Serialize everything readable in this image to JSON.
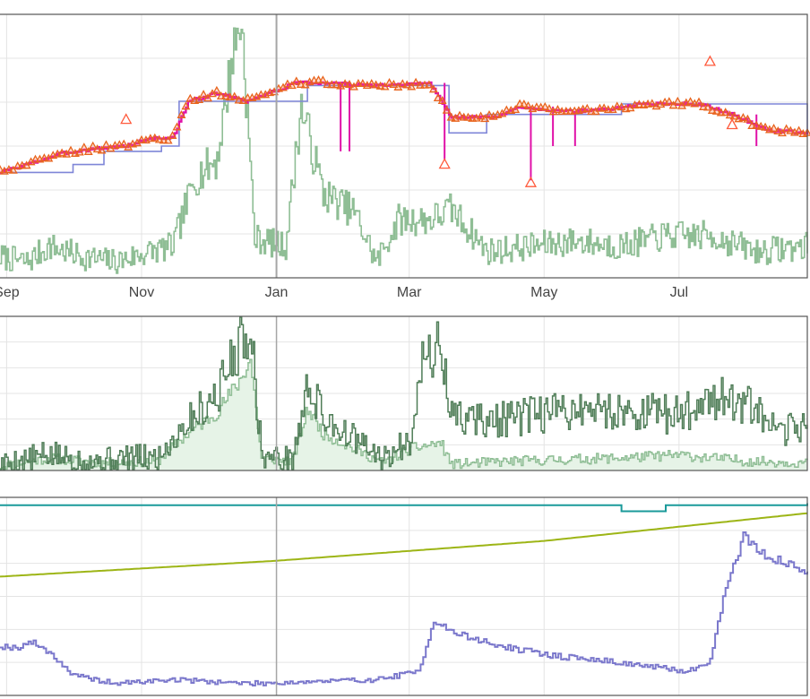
{
  "colors": {
    "price": "#e8641e",
    "price_marker": "#ff5a3c",
    "trade": "#e011a8",
    "fair": "#7f86d8",
    "volume": "#8fbe95",
    "volume_dark": "#4f7d57",
    "volume_fill": "#e6f3e7",
    "teal": "#1a9a9a",
    "olive": "#9db516",
    "blue": "#7b78cc",
    "grid": "#e4e4e4",
    "cursor": "#a6a6a6",
    "frame": "#555555"
  },
  "chart_data": [
    {
      "type": "line",
      "x_ticks": [
        {
          "label": "Sep",
          "date": "2023-09-01"
        },
        {
          "label": "Nov",
          "date": "2023-11-01"
        },
        {
          "label": "Jan",
          "date": "2024-01-01"
        },
        {
          "label": "Mar",
          "date": "2024-03-01"
        },
        {
          "label": "May",
          "date": "2024-05-01"
        },
        {
          "label": "Jul",
          "date": "2024-07-01"
        }
      ],
      "x_range": [
        "2023-08-29",
        "2024-08-28"
      ],
      "y_range": [
        0,
        100
      ],
      "grid": true,
      "series": [
        {
          "role": "price",
          "style": "step+triangles",
          "color": "orange",
          "x": [
            "2023-08-29",
            "2023-09-10",
            "2023-09-25",
            "2023-10-10",
            "2023-10-25",
            "2023-11-05",
            "2023-11-15",
            "2023-11-22",
            "2023-12-05",
            "2023-12-18",
            "2023-12-25",
            "2024-01-10",
            "2024-01-25",
            "2024-02-10",
            "2024-02-25",
            "2024-03-10",
            "2024-03-20",
            "2024-04-10",
            "2024-04-20",
            "2024-05-10",
            "2024-05-30",
            "2024-06-15",
            "2024-07-10",
            "2024-07-25",
            "2024-08-10",
            "2024-08-28"
          ],
          "y": [
            40,
            43,
            47,
            49,
            50,
            53,
            53,
            67,
            70,
            67,
            69,
            74,
            74,
            73,
            73,
            74,
            61,
            61,
            65,
            63,
            64,
            66,
            66,
            62,
            56,
            55
          ]
        },
        {
          "role": "fair",
          "style": "step",
          "color": "blue",
          "x": [
            "2023-08-29",
            "2023-10-01",
            "2023-10-15",
            "2023-11-10",
            "2023-11-18",
            "2023-12-20",
            "2024-01-15",
            "2024-03-18",
            "2024-03-19",
            "2024-04-05",
            "2024-05-20",
            "2024-06-05",
            "2024-07-15",
            "2024-08-28"
          ],
          "y": [
            40,
            43,
            48,
            50,
            67,
            67,
            73,
            73,
            55,
            62,
            62,
            66,
            66,
            55
          ]
        },
        {
          "role": "volume",
          "style": "line",
          "color": "green",
          "x": [
            "2023-08-29",
            "2023-09-10",
            "2023-09-20",
            "2023-10-05",
            "2023-10-20",
            "2023-11-05",
            "2023-11-15",
            "2023-11-25",
            "2023-12-05",
            "2023-12-12",
            "2023-12-16",
            "2023-12-22",
            "2024-01-05",
            "2024-01-12",
            "2024-01-22",
            "2024-02-05",
            "2024-02-15",
            "2024-02-25",
            "2024-03-10",
            "2024-03-20",
            "2024-04-05",
            "2024-04-25",
            "2024-05-15",
            "2024-06-05",
            "2024-06-25",
            "2024-07-15",
            "2024-08-05",
            "2024-08-28"
          ],
          "y": [
            8,
            6,
            12,
            8,
            6,
            10,
            12,
            38,
            45,
            85,
            98,
            15,
            12,
            65,
            32,
            25,
            6,
            22,
            22,
            26,
            10,
            12,
            14,
            12,
            16,
            16,
            10,
            12
          ]
        }
      ],
      "spikes_down": [
        {
          "x": "2024-01-30",
          "y": 48
        },
        {
          "x": "2024-02-03",
          "y": 48
        },
        {
          "x": "2024-03-17",
          "y": 45
        },
        {
          "x": "2024-04-25",
          "y": 37
        },
        {
          "x": "2024-05-05",
          "y": 50
        },
        {
          "x": "2024-05-15",
          "y": 50
        },
        {
          "x": "2024-08-05",
          "y": 50
        }
      ],
      "outliers": [
        {
          "x": "2023-10-25",
          "y": 60
        },
        {
          "x": "2024-03-17",
          "y": 43
        },
        {
          "x": "2024-04-25",
          "y": 36
        },
        {
          "x": "2024-07-15",
          "y": 82
        },
        {
          "x": "2024-07-25",
          "y": 58
        }
      ]
    },
    {
      "type": "area",
      "x_range": [
        "2023-08-29",
        "2024-08-28"
      ],
      "y_range": [
        0,
        100
      ],
      "grid": true,
      "series": [
        {
          "role": "dark",
          "style": "step",
          "color": "dark-green",
          "x": [
            "2023-08-29",
            "2023-09-20",
            "2023-10-10",
            "2023-10-25",
            "2023-11-08",
            "2023-11-20",
            "2023-12-05",
            "2023-12-14",
            "2023-12-20",
            "2023-12-25",
            "2024-01-08",
            "2024-01-15",
            "2024-01-22",
            "2024-02-05",
            "2024-02-18",
            "2024-03-01",
            "2024-03-06",
            "2024-03-15",
            "2024-03-20",
            "2024-04-10",
            "2024-05-15",
            "2024-06-10",
            "2024-07-01",
            "2024-07-15",
            "2024-08-01",
            "2024-08-15",
            "2024-08-28"
          ],
          "y": [
            4,
            10,
            6,
            8,
            8,
            30,
            50,
            80,
            95,
            10,
            6,
            55,
            35,
            20,
            6,
            20,
            70,
            80,
            35,
            32,
            40,
            38,
            36,
            48,
            42,
            22,
            32
          ]
        },
        {
          "role": "light",
          "style": "step",
          "color": "light-green",
          "x": [
            "2023-08-29",
            "2023-09-20",
            "2023-10-15",
            "2023-11-08",
            "2023-11-20",
            "2023-12-05",
            "2023-12-15",
            "2023-12-20",
            "2023-12-25",
            "2024-01-08",
            "2024-01-15",
            "2024-01-22",
            "2024-02-05",
            "2024-02-18",
            "2024-03-01",
            "2024-03-15",
            "2024-03-20",
            "2024-04-15",
            "2024-06-01",
            "2024-07-01",
            "2024-08-01",
            "2024-08-28"
          ],
          "y": [
            3,
            8,
            5,
            6,
            22,
            38,
            58,
            72,
            8,
            6,
            40,
            24,
            14,
            5,
            14,
            18,
            4,
            6,
            8,
            10,
            6,
            5
          ]
        }
      ]
    },
    {
      "type": "line",
      "x_range": [
        "2023-08-29",
        "2024-08-28"
      ],
      "y_range": [
        0,
        100
      ],
      "grid": true,
      "series": [
        {
          "role": "teal",
          "style": "step",
          "color": "teal",
          "x": [
            "2023-08-29",
            "2023-12-20",
            "2024-06-05",
            "2024-06-25",
            "2024-07-10",
            "2024-08-28"
          ],
          "y": [
            96,
            96,
            93,
            96,
            96,
            97
          ]
        },
        {
          "role": "olive",
          "style": "line",
          "color": "olive",
          "x": [
            "2023-08-29",
            "2024-01-01",
            "2024-05-01",
            "2024-08-28"
          ],
          "y": [
            60,
            68,
            78,
            92
          ]
        },
        {
          "role": "blue",
          "style": "step",
          "color": "blue",
          "x": [
            "2023-08-29",
            "2023-09-05",
            "2023-09-12",
            "2023-09-20",
            "2023-10-01",
            "2023-10-20",
            "2023-11-15",
            "2023-12-20",
            "2024-02-15",
            "2024-03-05",
            "2024-03-12",
            "2024-03-20",
            "2024-04-10",
            "2024-05-05",
            "2024-06-01",
            "2024-07-05",
            "2024-07-15",
            "2024-07-22",
            "2024-07-30",
            "2024-08-10",
            "2024-08-28"
          ],
          "y": [
            25,
            24,
            27,
            22,
            10,
            6,
            8,
            6,
            8,
            12,
            38,
            32,
            25,
            20,
            17,
            12,
            18,
            55,
            80,
            70,
            62
          ]
        }
      ]
    }
  ]
}
